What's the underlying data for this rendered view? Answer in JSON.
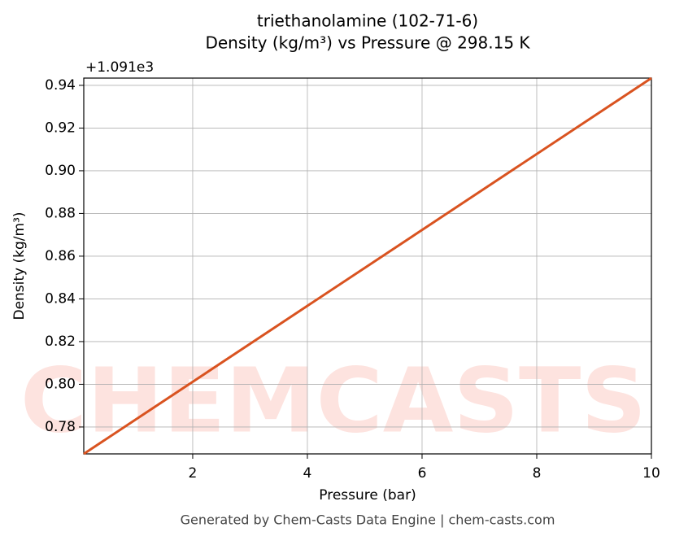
{
  "chart_data": {
    "type": "line",
    "title": "triethanolamine (102-71-6)",
    "subtitle": "Density (kg/m³) vs Pressure @ 298.15 K",
    "x_label": "Pressure (bar)",
    "y_label": "Density (kg/m³)",
    "y_offset_label": "+1.091e3",
    "watermark": "CHEMCASTS",
    "footer": "Generated by Chem-Casts Data Engine | chem-casts.com",
    "x": [
      0.1,
      10
    ],
    "series": [
      {
        "name": "triethanolamine",
        "color": "#d95320",
        "values": [
          0.7674,
          0.9434
        ]
      }
    ],
    "xlim": [
      0.1,
      10
    ],
    "ylim": [
      0.7674,
      0.9434
    ],
    "xticks": [
      2,
      4,
      6,
      8,
      10
    ],
    "yticks": [
      0.78,
      {
        "value": 0.8,
        "label": "0.80"
      },
      0.82,
      0.84,
      0.86,
      0.88,
      {
        "value": 0.9,
        "label": "0.90"
      },
      0.92,
      0.94
    ],
    "grid": true
  }
}
